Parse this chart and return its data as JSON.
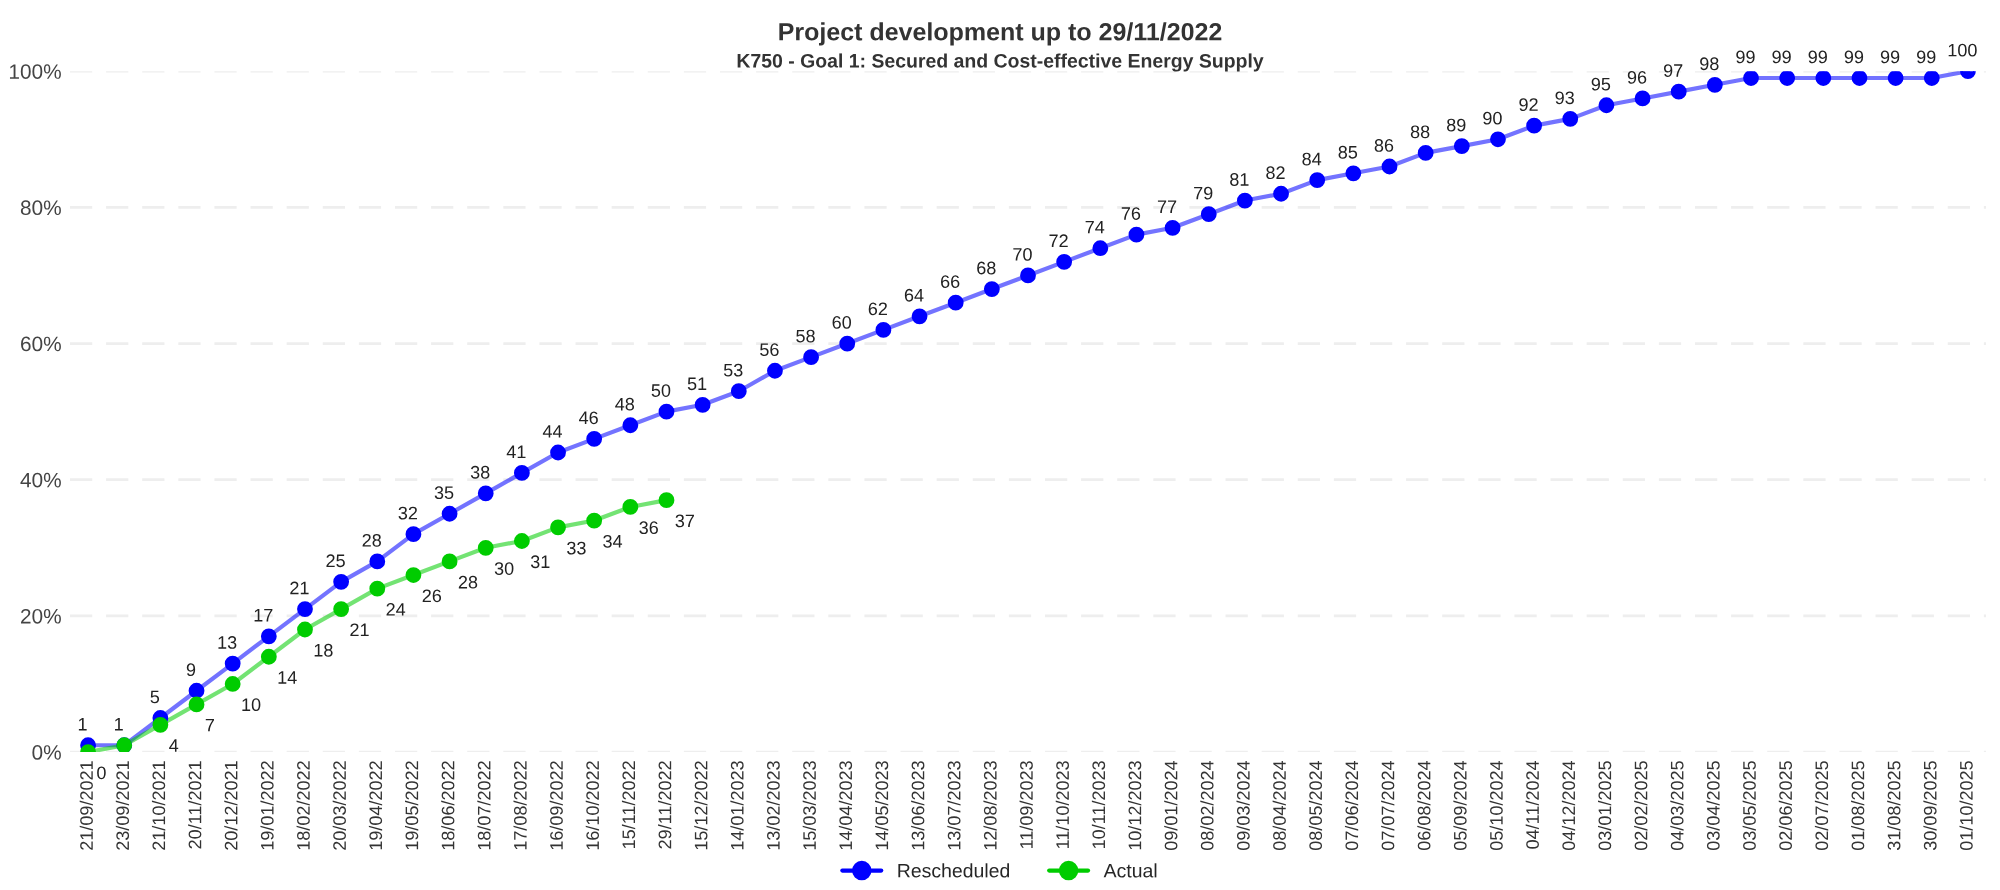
{
  "chart_data": {
    "type": "line",
    "title": "Project development up to 29/11/2022",
    "subtitle": "K750 - Goal 1: Secured and Cost-effective Energy Supply",
    "categories": [
      "21/09/2021",
      "23/09/2021",
      "21/10/2021",
      "20/11/2021",
      "20/12/2021",
      "19/01/2022",
      "18/02/2022",
      "20/03/2022",
      "19/04/2022",
      "19/05/2022",
      "18/06/2022",
      "18/07/2022",
      "17/08/2022",
      "16/09/2022",
      "16/10/2022",
      "15/11/2022",
      "29/11/2022",
      "15/12/2022",
      "14/01/2023",
      "13/02/2023",
      "15/03/2023",
      "14/04/2023",
      "14/05/2023",
      "13/06/2023",
      "13/07/2023",
      "12/08/2023",
      "11/09/2023",
      "11/10/2023",
      "10/11/2023",
      "10/12/2023",
      "09/01/2024",
      "08/02/2024",
      "09/03/2024",
      "08/04/2024",
      "08/05/2024",
      "07/06/2024",
      "07/07/2024",
      "06/08/2024",
      "05/09/2024",
      "05/10/2024",
      "04/11/2024",
      "04/12/2024",
      "03/01/2025",
      "02/02/2025",
      "04/03/2025",
      "03/04/2025",
      "03/05/2025",
      "02/06/2025",
      "02/07/2025",
      "01/08/2025",
      "31/08/2025",
      "30/09/2025",
      "01/10/2025"
    ],
    "series": [
      {
        "name": "Rescheduled",
        "color": "#0000ff",
        "values": [
          1,
          1,
          5,
          9,
          13,
          17,
          21,
          25,
          28,
          32,
          35,
          38,
          41,
          44,
          46,
          48,
          50,
          51,
          53,
          56,
          58,
          60,
          62,
          64,
          66,
          68,
          70,
          72,
          74,
          76,
          77,
          79,
          81,
          82,
          84,
          85,
          86,
          88,
          89,
          90,
          92,
          93,
          95,
          96,
          97,
          98,
          99,
          99,
          99,
          99,
          99,
          99,
          100
        ]
      },
      {
        "name": "Actual",
        "color": "#00cc00",
        "values": [
          0,
          1,
          4,
          7,
          10,
          14,
          18,
          21,
          24,
          26,
          28,
          30,
          31,
          33,
          34,
          36,
          37,
          null,
          null,
          null,
          null,
          null,
          null,
          null,
          null,
          null,
          null,
          null,
          null,
          null,
          null,
          null,
          null,
          null,
          null,
          null,
          null,
          null,
          null,
          null,
          null,
          null,
          null,
          null,
          null,
          null,
          null,
          null,
          null,
          null,
          null,
          null,
          null
        ],
        "value_labels": [
          "0",
          null,
          "4",
          "7",
          "10",
          "14",
          "18",
          "21",
          "24",
          "26",
          "28",
          "30",
          "31",
          "33",
          "34",
          "36",
          "37",
          null,
          null,
          null,
          null,
          null,
          null,
          null,
          null,
          null,
          null,
          null,
          null,
          null,
          null,
          null,
          null,
          null,
          null,
          null,
          null,
          null,
          null,
          null,
          null,
          null,
          null,
          null,
          null,
          null,
          null,
          null,
          null,
          null,
          null,
          null,
          null
        ]
      }
    ],
    "ylim": [
      0,
      100
    ],
    "yticks": [
      {
        "value": 0,
        "label": "0%"
      },
      {
        "value": 20,
        "label": "20%"
      },
      {
        "value": 40,
        "label": "40%"
      },
      {
        "value": 60,
        "label": "60%"
      },
      {
        "value": 80,
        "label": "80%"
      },
      {
        "value": 100,
        "label": "100%"
      }
    ],
    "grid": "y",
    "legend": "bottom",
    "marker": "circle",
    "line_style": "solid",
    "data_labels": true
  }
}
